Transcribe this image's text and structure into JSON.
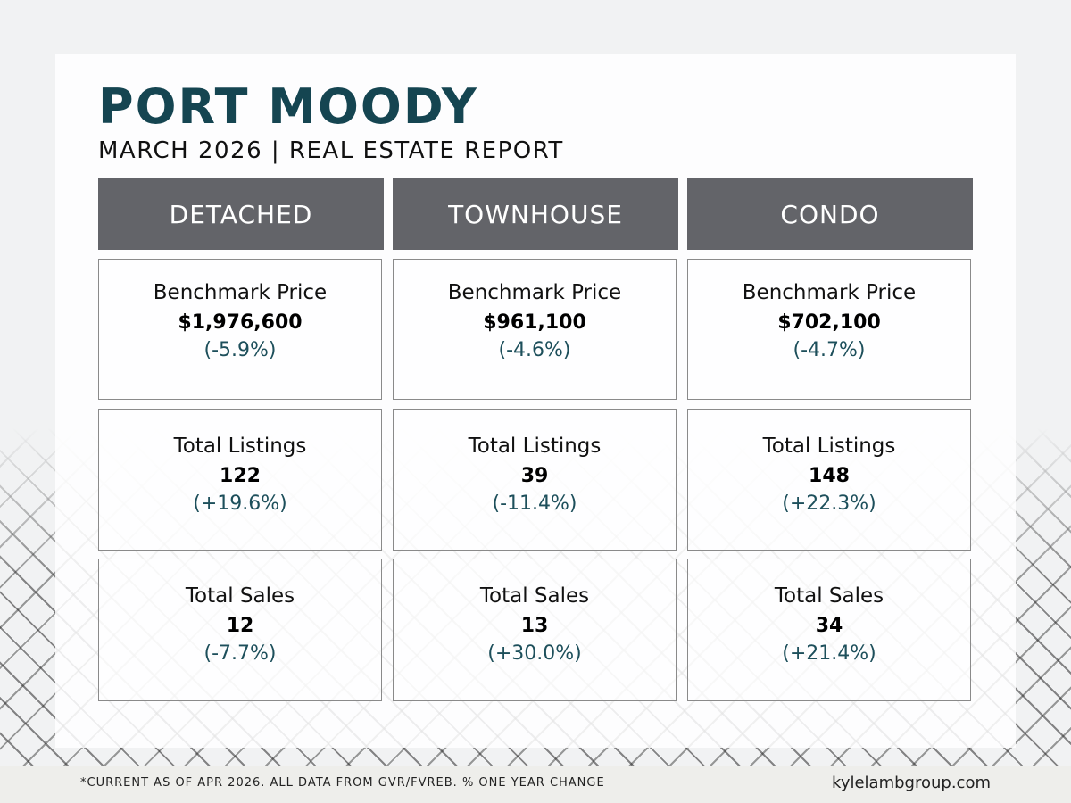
{
  "header": {
    "title": "PORT MOODY",
    "subtitle": "MARCH 2026 | REAL ESTATE REPORT"
  },
  "columns": [
    {
      "name": "DETACHED",
      "metrics": [
        {
          "label": "Benchmark Price",
          "value": "$1,976,600",
          "change": "(-5.9%)"
        },
        {
          "label": "Total Listings",
          "value": "122",
          "change": "(+19.6%)"
        },
        {
          "label": "Total Sales",
          "value": "12",
          "change": "(-7.7%)"
        }
      ]
    },
    {
      "name": "TOWNHOUSE",
      "metrics": [
        {
          "label": "Benchmark Price",
          "value": "$961,100",
          "change": "(-4.6%)"
        },
        {
          "label": "Total Listings",
          "value": "39",
          "change": "(-11.4%)"
        },
        {
          "label": "Total Sales",
          "value": "13",
          "change": "(+30.0%)"
        }
      ]
    },
    {
      "name": "CONDO",
      "metrics": [
        {
          "label": "Benchmark Price",
          "value": "$702,100",
          "change": "(-4.7%)"
        },
        {
          "label": "Total Listings",
          "value": "148",
          "change": "(+22.3%)"
        },
        {
          "label": "Total Sales",
          "value": "34",
          "change": "(+21.4%)"
        }
      ]
    }
  ],
  "footer": {
    "note": "*CURRENT AS  OF APR 2026. ALL DATA FROM GVR/FVREB.  % ONE YEAR CHANGE",
    "website": "kylelambgroup.com"
  },
  "colors": {
    "title": "#154551",
    "header_bg": "#636469",
    "change_text": "#1d4f5b"
  }
}
